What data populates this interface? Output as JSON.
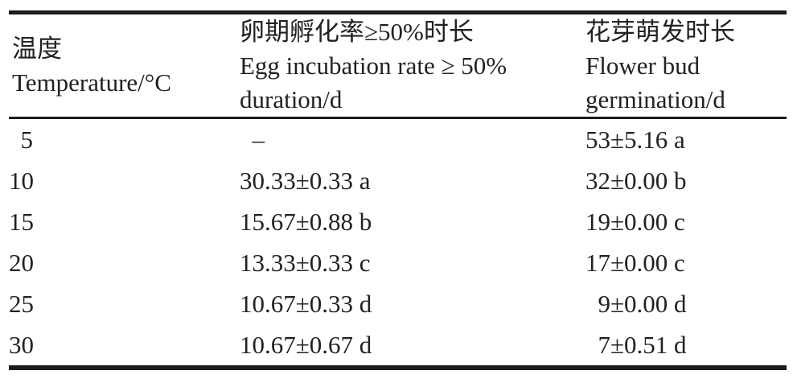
{
  "table": {
    "columns": [
      {
        "zh": "温度",
        "en": "Temperature/°C",
        "unit": ""
      },
      {
        "zh": "卵期孵化率≥50%时长",
        "en": "Egg incubation rate ≥ 50%",
        "unit": "duration/d"
      },
      {
        "zh": "花芽萌发时长",
        "en": "Flower bud",
        "unit": "germination/d"
      }
    ],
    "rows": [
      [
        "5",
        "–",
        "53±5.16 a"
      ],
      [
        "10",
        "30.33±0.33 a",
        "32±0.00 b"
      ],
      [
        "15",
        "15.67±0.88 b",
        "19±0.00 c"
      ],
      [
        "20",
        "13.33±0.33 c",
        "17±0.00 c"
      ],
      [
        "25",
        "10.67±0.33 d",
        "9±0.00 d"
      ],
      [
        "30",
        "10.67±0.67 d",
        "7±0.51 d"
      ]
    ],
    "missing_value_symbol": "–"
  },
  "chart_data": {
    "type": "table",
    "columns": [
      "温度 Temperature/°C",
      "卵期孵化率≥50%时长 Egg incubation rate ≥ 50% duration/d",
      "花芽萌发时长 Flower bud germination/d"
    ],
    "temperatures_c": [
      5,
      10,
      15,
      20,
      25,
      30
    ],
    "egg_incubation_duration_d_mean": [
      null,
      30.33,
      15.67,
      13.33,
      10.67,
      10.67
    ],
    "egg_incubation_duration_d_sd": [
      null,
      0.33,
      0.88,
      0.33,
      0.33,
      0.67
    ],
    "egg_incubation_sig_letters": [
      null,
      "a",
      "b",
      "c",
      "d",
      "d"
    ],
    "flower_bud_germination_d_mean": [
      53,
      32,
      19,
      17,
      9,
      7
    ],
    "flower_bud_germination_d_sd": [
      5.16,
      0.0,
      0.0,
      0.0,
      0.0,
      0.51
    ],
    "flower_bud_sig_letters": [
      "a",
      "b",
      "c",
      "c",
      "d",
      "d"
    ],
    "missing_value_symbol": "–"
  },
  "colors": {
    "text": "#242021",
    "rule": "#1c1c1c",
    "background": "#ffffff"
  }
}
